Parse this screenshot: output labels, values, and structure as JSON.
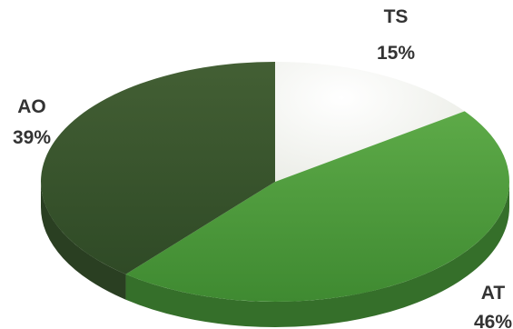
{
  "chart_data": {
    "type": "pie",
    "title": "",
    "categories": [
      "TS",
      "AT",
      "AO"
    ],
    "values": [
      15,
      46,
      39
    ],
    "value_labels": [
      "15%",
      "46%",
      "39%"
    ],
    "colors": {
      "TS": "#f4f5f1",
      "AT": "#4f9a3d",
      "AO": "#3a5a2f"
    },
    "style": "3d-tilted"
  }
}
